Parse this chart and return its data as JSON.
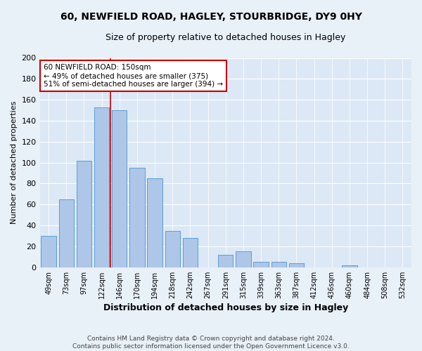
{
  "title": "60, NEWFIELD ROAD, HAGLEY, STOURBRIDGE, DY9 0HY",
  "subtitle": "Size of property relative to detached houses in Hagley",
  "xlabel": "Distribution of detached houses by size in Hagley",
  "ylabel": "Number of detached properties",
  "categories": [
    "49sqm",
    "73sqm",
    "97sqm",
    "122sqm",
    "146sqm",
    "170sqm",
    "194sqm",
    "218sqm",
    "242sqm",
    "267sqm",
    "291sqm",
    "315sqm",
    "339sqm",
    "363sqm",
    "387sqm",
    "412sqm",
    "436sqm",
    "460sqm",
    "484sqm",
    "508sqm",
    "532sqm"
  ],
  "values": [
    30,
    65,
    102,
    153,
    150,
    95,
    85,
    35,
    28,
    0,
    12,
    15,
    5,
    5,
    4,
    0,
    0,
    2,
    0,
    0,
    0
  ],
  "bar_color": "#aec6e8",
  "bar_edge_color": "#5a9fd4",
  "annotation_line1": "60 NEWFIELD ROAD: 150sqm",
  "annotation_line2": "← 49% of detached houses are smaller (375)",
  "annotation_line3": "51% of semi-detached houses are larger (394) →",
  "annotation_box_color": "#ffffff",
  "annotation_box_edge": "#cc0000",
  "vline_color": "#cc0000",
  "footer_line1": "Contains HM Land Registry data © Crown copyright and database right 2024.",
  "footer_line2": "Contains public sector information licensed under the Open Government Licence v3.0.",
  "bg_color": "#e8f0f8",
  "plot_bg_color": "#dce8f5",
  "ylim": [
    0,
    200
  ],
  "yticks": [
    0,
    20,
    40,
    60,
    80,
    100,
    120,
    140,
    160,
    180,
    200
  ],
  "vline_index": 4
}
